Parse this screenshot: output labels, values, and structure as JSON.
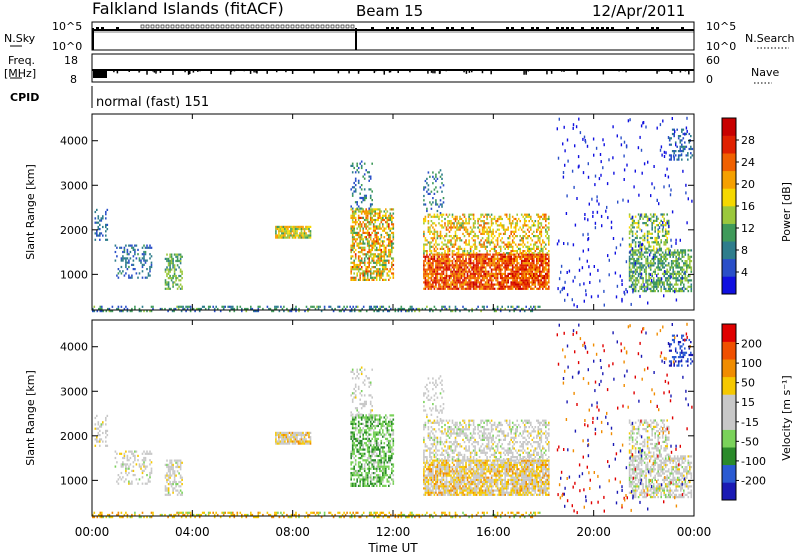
{
  "header": {
    "station": "Falkland Islands (fitACF)",
    "beam": "Beam 15",
    "date": "12/Apr/2011"
  },
  "strip": {
    "nsky_label": "N.Sky",
    "nsky_ticks": [
      "10^5",
      "10^0"
    ],
    "nsearch_label": "N.Search",
    "freq_label": "Freq.",
    "freq_unit": "[MHz]",
    "freq_ticks": [
      "18",
      "8"
    ],
    "nave_ticks": [
      "60",
      "0"
    ],
    "nave_label": "Nave",
    "cpid_label": "CPID",
    "cpid_value": "normal (fast) 151"
  },
  "chart_data": [
    {
      "type": "heatmap",
      "name": "power",
      "ylabel": "Slant Range [km]",
      "ylim": [
        200,
        4600
      ],
      "yticks": [
        "1000",
        "2000",
        "3000",
        "4000"
      ],
      "xlim": [
        0,
        24
      ],
      "colorbar": {
        "label": "Power [dB]",
        "ticks": [
          "28",
          "24",
          "20",
          "16",
          "12",
          "8",
          "4"
        ],
        "colors": [
          "#1010e0",
          "#2a4fc8",
          "#2e7d8c",
          "#3f9a5a",
          "#9bc83c",
          "#f5d800",
          "#f5a000",
          "#f06000",
          "#e02000",
          "#c80000"
        ]
      }
    },
    {
      "type": "heatmap",
      "name": "velocity",
      "ylabel": "Slant Range [km]",
      "ylim": [
        200,
        4600
      ],
      "yticks": [
        "1000",
        "2000",
        "3000",
        "4000"
      ],
      "xlim": [
        0,
        24
      ],
      "xticks": [
        "00:00",
        "04:00",
        "08:00",
        "12:00",
        "16:00",
        "20:00",
        "00:00"
      ],
      "xlabel": "Time UT",
      "colorbar": {
        "label": "Velocity [m s⁻¹]",
        "ticks": [
          "200",
          "100",
          "50",
          "15",
          "-15",
          "-50",
          "-100",
          "-200"
        ],
        "colors": [
          "#1a1ab4",
          "#2a5ad2",
          "#2a8a2a",
          "#7ad25a",
          "#c8c8c8",
          "#c8c8c8",
          "#f5c800",
          "#f08c00",
          "#f05000",
          "#e00000"
        ]
      }
    }
  ]
}
